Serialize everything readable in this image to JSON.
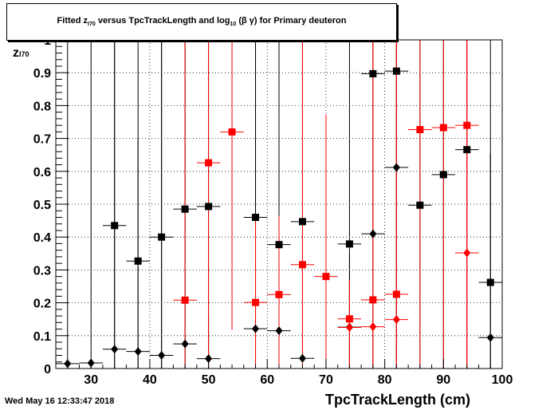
{
  "title": {
    "pre": "Fitted  z",
    "sub1": "I70",
    "mid": "  versus TpcTrackLength and log",
    "sub2": "10",
    "post": " (β γ) for Primary deuteron"
  },
  "footer": {
    "stamp": "Wed May 16 12:33:47 2018"
  },
  "axes": {
    "x_title": "TpcTrackLength (cm)",
    "y_title_main": "z",
    "y_title_sub": "I70"
  },
  "colors": {
    "black": "#000000",
    "red": "#ff0000"
  },
  "chart_data": {
    "type": "scatter",
    "title": "Fitted z_I70 versus TpcTrackLength and log10 (β γ) for Primary deuteron",
    "xlabel": "TpcTrackLength (cm)",
    "ylabel": "z_I70",
    "xlim": [
      24,
      100
    ],
    "ylim": [
      0,
      1
    ],
    "grid": true,
    "x_ticks": [
      30,
      40,
      50,
      60,
      70,
      80,
      90,
      100
    ],
    "y_ticks": [
      0,
      0.1,
      0.2,
      0.3,
      0.4,
      0.5,
      0.6,
      0.7,
      0.8,
      0.9,
      1
    ],
    "y_tick_labels": [
      "0",
      "0.1",
      "0.2",
      "0.3",
      "0.4",
      "0.5",
      "0.6",
      "0.7",
      "0.8",
      "0.9",
      "1"
    ],
    "series": [
      {
        "color": "#000000",
        "marker": "square",
        "x": [
          34,
          38,
          42,
          46,
          50,
          58,
          62,
          66,
          74,
          78,
          82,
          86,
          90,
          94,
          98
        ],
        "y": [
          0.435,
          0.327,
          0.4,
          0.485,
          0.493,
          0.46,
          0.377,
          0.447,
          0.379,
          0.897,
          0.905,
          0.497,
          0.59,
          0.666,
          0.262
        ],
        "xerr": 2,
        "ylo": [
          0,
          0,
          0,
          0,
          0,
          0,
          0,
          0,
          0,
          0,
          0,
          0,
          0,
          0,
          0
        ],
        "yhi": [
          1,
          1,
          1,
          1,
          1,
          1,
          1,
          1,
          1,
          1,
          1,
          1,
          1,
          1,
          0.655
        ]
      },
      {
        "color": "#000000",
        "marker": "diamond",
        "x": [
          26,
          30,
          34,
          38,
          42,
          46,
          50,
          58,
          62,
          66,
          74,
          78,
          82,
          98
        ],
        "y": [
          0.015,
          0.017,
          0.059,
          0.052,
          0.04,
          0.075,
          0.03,
          0.121,
          0.115,
          0.031,
          0.126,
          0.41,
          0.612,
          0.094
        ],
        "xerr": 2,
        "ylo": [
          0,
          0,
          0,
          0,
          0,
          0,
          0,
          0,
          0,
          0,
          0,
          0,
          0,
          0
        ],
        "yhi": [
          1,
          1,
          1,
          0.697,
          1,
          1,
          0.16,
          1,
          0.792,
          1,
          0.348,
          1,
          1,
          1
        ]
      },
      {
        "color": "#ff0000",
        "marker": "square",
        "x": [
          46,
          50,
          54,
          58,
          62,
          66,
          70,
          74,
          78,
          82,
          86,
          90,
          94
        ],
        "y": [
          0.208,
          0.626,
          0.72,
          0.201,
          0.225,
          0.316,
          0.28,
          0.151,
          0.209,
          0.226,
          0.727,
          0.733,
          0.74
        ],
        "xerr": 2,
        "ylo": [
          0,
          0,
          0.118,
          0,
          0,
          0,
          0,
          0,
          0,
          0,
          0,
          0,
          0
        ],
        "yhi": [
          1,
          1,
          1,
          0.462,
          0.463,
          1,
          0.772,
          0.268,
          1,
          1,
          1,
          1,
          1
        ]
      },
      {
        "color": "#ff0000",
        "marker": "diamond",
        "x": [
          74,
          78,
          82,
          94
        ],
        "y": [
          0.125,
          0.127,
          0.149,
          0.352
        ],
        "xerr": 2,
        "ylo": [
          0,
          0,
          0,
          0
        ],
        "yhi": [
          0.268,
          1,
          1,
          1
        ]
      }
    ]
  }
}
